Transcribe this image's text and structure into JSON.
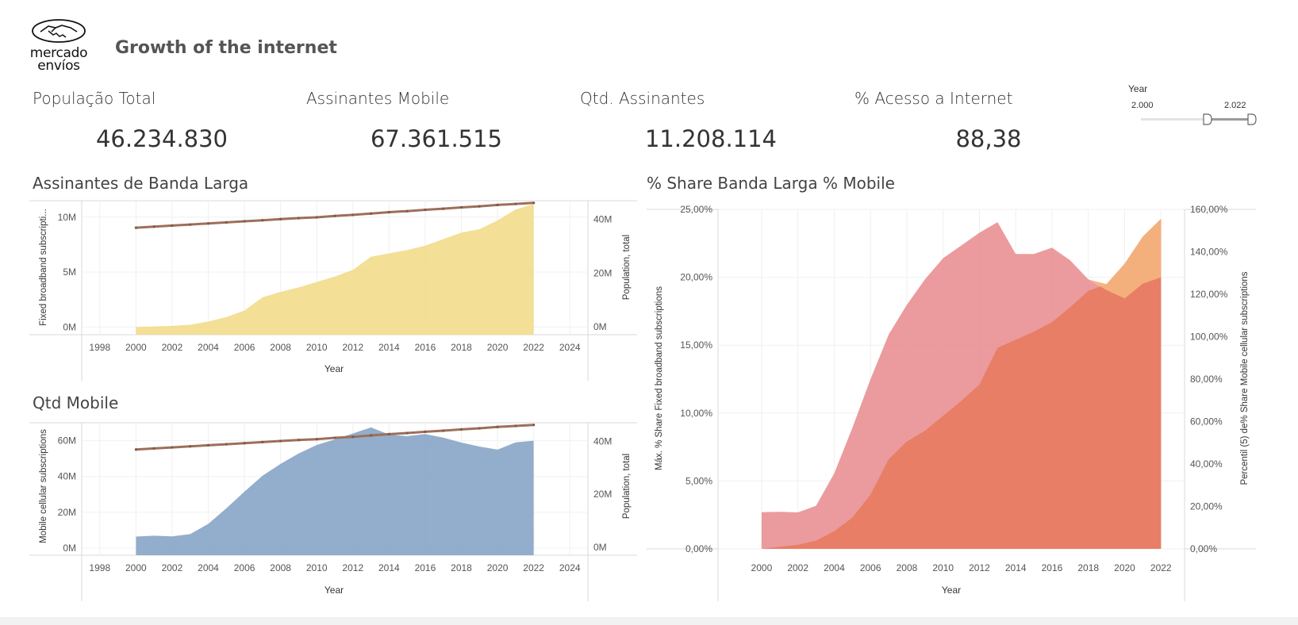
{
  "header": {
    "title": "Growth of the internet",
    "logo_line1": "mercado",
    "logo_line2": "envíos"
  },
  "kpis": [
    {
      "label": "População Total",
      "value": "46.234.830"
    },
    {
      "label": "Assinantes Mobile",
      "value": "67.361.515"
    },
    {
      "label": "Qtd. Assinantes",
      "value": "11.208.114"
    },
    {
      "label": "% Acesso a Internet",
      "value": "88,38"
    }
  ],
  "year_filter": {
    "title": "Year",
    "min_label": "2.000",
    "max_label": "2.022",
    "min": 2000,
    "max": 2022
  },
  "colors": {
    "broadband": "#f2dc8c",
    "population": "#9e6f5a",
    "mobile": "#8aa6c8",
    "share_mobile": "#e8898c",
    "share_broadband": "#e87b60",
    "share_overlap_orange": "#f4b27c"
  },
  "chart_data": [
    {
      "id": "broadband",
      "type": "area",
      "title": "Assinantes de Banda Larga",
      "xlabel": "Year",
      "ylabel_left": "Fixed broadband subscripti...",
      "ylabel_right": "Population, total",
      "xlim": [
        1997,
        2025
      ],
      "x_ticks": [
        "1998",
        "2000",
        "2002",
        "2004",
        "2006",
        "2008",
        "2010",
        "2012",
        "2014",
        "2016",
        "2018",
        "2020",
        "2022",
        "2024"
      ],
      "ylim_left": [
        -0.7,
        11.5
      ],
      "yticks_left": [
        {
          "v": 0,
          "label": "0M"
        },
        {
          "v": 5,
          "label": "5M"
        },
        {
          "v": 10,
          "label": "10M"
        }
      ],
      "ylim_right": [
        -3,
        47
      ],
      "yticks_right": [
        {
          "v": 0,
          "label": "0M"
        },
        {
          "v": 20,
          "label": "20M"
        },
        {
          "v": 40,
          "label": "40M"
        }
      ],
      "x": [
        2000,
        2001,
        2002,
        2003,
        2004,
        2005,
        2006,
        2007,
        2008,
        2009,
        2010,
        2011,
        2012,
        2013,
        2014,
        2015,
        2016,
        2017,
        2018,
        2019,
        2020,
        2021,
        2022
      ],
      "series": [
        {
          "name": "Fixed broadband subscriptions (M)",
          "axis": "left",
          "kind": "area",
          "values": [
            0.0,
            0.05,
            0.1,
            0.2,
            0.5,
            0.9,
            1.5,
            2.7,
            3.2,
            3.6,
            4.1,
            4.6,
            5.2,
            6.4,
            6.7,
            7.0,
            7.4,
            8.0,
            8.6,
            8.9,
            9.7,
            10.7,
            11.2
          ]
        },
        {
          "name": "Population, total (M)",
          "axis": "right",
          "kind": "line",
          "values": [
            36.9,
            37.3,
            37.7,
            38.1,
            38.5,
            38.9,
            39.3,
            39.7,
            40.1,
            40.5,
            40.8,
            41.3,
            41.7,
            42.2,
            42.7,
            43.1,
            43.6,
            44.0,
            44.5,
            44.9,
            45.4,
            45.8,
            46.2
          ]
        }
      ]
    },
    {
      "id": "mobile",
      "type": "area",
      "title": "Qtd Mobile",
      "xlabel": "Year",
      "ylabel_left": "Mobile cellular subscriptions",
      "ylabel_right": "Population, total",
      "xlim": [
        1997,
        2025
      ],
      "x_ticks": [
        "1998",
        "2000",
        "2002",
        "2004",
        "2006",
        "2008",
        "2010",
        "2012",
        "2014",
        "2016",
        "2018",
        "2020",
        "2022",
        "2024"
      ],
      "ylim_left": [
        -4,
        70
      ],
      "yticks_left": [
        {
          "v": 0,
          "label": "0M"
        },
        {
          "v": 20,
          "label": "20M"
        },
        {
          "v": 40,
          "label": "40M"
        },
        {
          "v": 60,
          "label": "60M"
        }
      ],
      "ylim_right": [
        -3,
        47
      ],
      "yticks_right": [
        {
          "v": 0,
          "label": "0M"
        },
        {
          "v": 20,
          "label": "20M"
        },
        {
          "v": 40,
          "label": "40M"
        }
      ],
      "x": [
        2000,
        2001,
        2002,
        2003,
        2004,
        2005,
        2006,
        2007,
        2008,
        2009,
        2010,
        2011,
        2012,
        2013,
        2014,
        2015,
        2016,
        2017,
        2018,
        2019,
        2020,
        2021,
        2022
      ],
      "series": [
        {
          "name": "Mobile cellular subscriptions (M)",
          "axis": "left",
          "kind": "area",
          "values": [
            6.4,
            6.9,
            6.5,
            7.8,
            13.5,
            22.2,
            31.5,
            40.4,
            47.0,
            52.8,
            57.6,
            60.7,
            64.0,
            67.4,
            63.4,
            62.5,
            63.7,
            61.7,
            58.9,
            56.7,
            55.0,
            59.0,
            60.0
          ]
        },
        {
          "name": "Population, total (M)",
          "axis": "right",
          "kind": "line",
          "values": [
            36.9,
            37.3,
            37.7,
            38.1,
            38.5,
            38.9,
            39.3,
            39.7,
            40.1,
            40.5,
            40.8,
            41.3,
            41.7,
            42.2,
            42.7,
            43.1,
            43.6,
            44.0,
            44.5,
            44.9,
            45.4,
            45.8,
            46.2
          ]
        }
      ]
    },
    {
      "id": "share",
      "type": "area",
      "title": "% Share Banda Larga % Mobile",
      "xlabel": "Year",
      "ylabel_left": "Máx. % Share Fixed broadband subscriptions",
      "ylabel_right": "Percentil (5) de% Share Mobile cellular subscriptions",
      "xlim": [
        1997.6,
        2023.3
      ],
      "x_ticks": [
        "2000",
        "2002",
        "2004",
        "2006",
        "2008",
        "2010",
        "2012",
        "2014",
        "2016",
        "2018",
        "2020",
        "2022"
      ],
      "ylim_left": [
        0,
        25
      ],
      "yticks_left": [
        {
          "v": 0,
          "label": "0,00%"
        },
        {
          "v": 5,
          "label": "5,00%"
        },
        {
          "v": 10,
          "label": "10,00%"
        },
        {
          "v": 15,
          "label": "15,00%"
        },
        {
          "v": 20,
          "label": "20,00%"
        },
        {
          "v": 25,
          "label": "25,00%"
        }
      ],
      "ylim_right": [
        0,
        160
      ],
      "yticks_right": [
        {
          "v": 0,
          "label": "0,00%"
        },
        {
          "v": 20,
          "label": "20,00%"
        },
        {
          "v": 40,
          "label": "40,00%"
        },
        {
          "v": 60,
          "label": "60,00%"
        },
        {
          "v": 80,
          "label": "80,00%"
        },
        {
          "v": 100,
          "label": "100,00%"
        },
        {
          "v": 120,
          "label": "120,00%"
        },
        {
          "v": 140,
          "label": "140,00%"
        },
        {
          "v": 160,
          "label": "160,00%"
        }
      ],
      "x": [
        2000,
        2001,
        2002,
        2003,
        2004,
        2005,
        2006,
        2007,
        2008,
        2009,
        2010,
        2011,
        2012,
        2013,
        2014,
        2015,
        2016,
        2017,
        2018,
        2019,
        2020,
        2021,
        2022
      ],
      "series": [
        {
          "name": "% Share Mobile cellular subscriptions",
          "axis": "right",
          "kind": "area",
          "values": [
            17.3,
            17.5,
            17.2,
            20.3,
            35.5,
            57.0,
            80.0,
            101.0,
            115.0,
            127.0,
            137.0,
            143.0,
            149.0,
            154.0,
            139.0,
            139.0,
            142.0,
            136.0,
            127.0,
            122.0,
            118.0,
            125.0,
            128.0
          ]
        },
        {
          "name": "% Share Fixed broadband subscriptions",
          "axis": "left",
          "kind": "area",
          "values": [
            0.0,
            0.15,
            0.3,
            0.6,
            1.3,
            2.3,
            4.0,
            6.6,
            7.9,
            8.7,
            9.8,
            10.9,
            12.1,
            14.8,
            15.4,
            16.0,
            16.7,
            17.8,
            19.0,
            19.5,
            21.0,
            23.0,
            24.3
          ]
        }
      ]
    }
  ]
}
